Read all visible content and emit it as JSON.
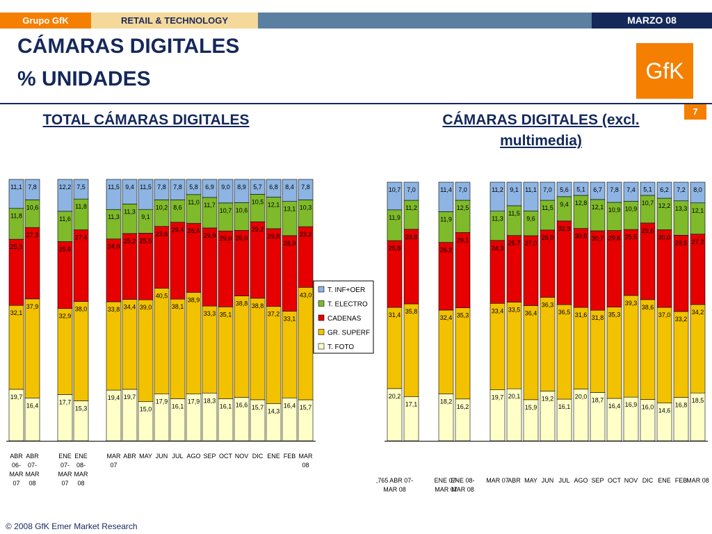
{
  "header": {
    "brand": "Grupo GfK",
    "section": "RETAIL & TECHNOLOGY",
    "date": "MARZO 08",
    "title_line1": "CÁMARAS DIGITALES",
    "title_line2": "% UNIDADES",
    "logo_text": "GfK",
    "page_number": "7"
  },
  "footer": {
    "copyright": "© 2008 GfK Emer Market Research"
  },
  "legend": {
    "items": [
      {
        "label": "T. INF+OER",
        "color": "#8db4e2"
      },
      {
        "label": "T. ELECTRO",
        "color": "#7fba2a"
      },
      {
        "label": "CADENAS",
        "color": "#e60000"
      },
      {
        "label": "GR. SUPERF",
        "color": "#f2c200"
      },
      {
        "label": "T. FOTO",
        "color": "#ffffc8"
      }
    ]
  },
  "chart_data": [
    {
      "type": "bar",
      "stacked": true,
      "title": "TOTAL CÁMARAS DIGITALES",
      "ylim": [
        0,
        100
      ],
      "grid": false,
      "legend": "right",
      "series_order_bottom_to_top": [
        "T. FOTO",
        "GR. SUPERF",
        "CADENAS",
        "T. ELECTRO",
        "T. INF+OER"
      ],
      "groups": [
        {
          "bars": [
            {
              "label": [
                "ABR",
                "06-",
                "MAR",
                "07"
              ],
              "values": [
                19.7,
                32.1,
                25.3,
                11.8,
                11.1
              ]
            },
            {
              "label": [
                "ABR",
                "07-",
                "MAR",
                "08"
              ],
              "values": [
                16.4,
                37.9,
                27.3,
                10.6,
                7.8
              ]
            }
          ]
        },
        {
          "bars": [
            {
              "label": [
                "ENE",
                "07-",
                "MAR",
                "07"
              ],
              "values": [
                17.7,
                32.9,
                25.6,
                11.6,
                12.2
              ]
            },
            {
              "label": [
                "ENE",
                "08-",
                "MAR",
                "08"
              ],
              "values": [
                15.3,
                38.0,
                27.4,
                11.8,
                7.5
              ]
            }
          ]
        },
        {
          "bars": [
            {
              "label": [
                "MAR",
                "07"
              ],
              "values": [
                19.4,
                33.8,
                24.0,
                11.3,
                11.5
              ]
            },
            {
              "label": [
                "ABR"
              ],
              "values": [
                19.7,
                34.4,
                25.2,
                11.3,
                9.4
              ]
            },
            {
              "label": [
                "MAY"
              ],
              "values": [
                15.0,
                39.0,
                25.5,
                9.1,
                11.5
              ]
            },
            {
              "label": [
                "JUN"
              ],
              "values": [
                17.9,
                40.5,
                23.6,
                10.2,
                7.8
              ]
            },
            {
              "label": [
                "JUL"
              ],
              "values": [
                16.1,
                38.1,
                29.4,
                8.6,
                7.8
              ]
            },
            {
              "label": [
                "AGO"
              ],
              "values": [
                17.9,
                38.9,
                26.4,
                11.0,
                5.8
              ]
            },
            {
              "label": [
                "SEP"
              ],
              "values": [
                18.3,
                33.3,
                29.9,
                11.7,
                6.9
              ]
            },
            {
              "label": [
                "OCT"
              ],
              "values": [
                16.1,
                35.1,
                29.0,
                10.7,
                9.0
              ]
            },
            {
              "label": [
                "NOV"
              ],
              "values": [
                16.6,
                38.8,
                25.0,
                10.6,
                8.9
              ]
            },
            {
              "label": [
                "DIC"
              ],
              "values": [
                15.7,
                38.8,
                29.2,
                10.5,
                5.7
              ]
            },
            {
              "label": [
                "ENE"
              ],
              "values": [
                14.3,
                37.2,
                29.8,
                12.1,
                6.8
              ]
            },
            {
              "label": [
                "FEB"
              ],
              "values": [
                16.4,
                33.1,
                28.9,
                13.1,
                8.4
              ]
            },
            {
              "label": [
                "MAR",
                "08"
              ],
              "values": [
                15.7,
                43.0,
                23.2,
                10.3,
                7.8
              ]
            }
          ]
        }
      ]
    },
    {
      "type": "bar",
      "stacked": true,
      "title": "CÁMARAS DIGITALES (excl. multimedia)",
      "ylim": [
        0,
        100
      ],
      "grid": false,
      "series_order_bottom_to_top": [
        "T. FOTO",
        "GR. SUPERF",
        "CADENAS",
        "T. ELECTRO",
        "T. INF+OER"
      ],
      "groups": [
        {
          "bars": [
            {
              "label": [
                ",765 ABR 07-",
                "MAR 08"
              ],
              "values": [
                20.2,
                31.4,
                25.8,
                11.9,
                10.7
              ]
            },
            {
              "label": [],
              "values": [
                17.1,
                35.8,
                28.8,
                11.2,
                7.0
              ]
            }
          ]
        },
        {
          "bars": [
            {
              "label": [
                "ENE 07-",
                "MAR 07"
              ],
              "values": [
                18.2,
                32.4,
                26.2,
                11.9,
                11.4
              ]
            },
            {
              "label": [
                "ENE 08-",
                "MAR 08"
              ],
              "values": [
                16.2,
                35.3,
                29.1,
                12.5,
                7.0
              ]
            }
          ]
        },
        {
          "bars": [
            {
              "label": [
                "MAR 07"
              ],
              "values": [
                19.7,
                33.4,
                24.3,
                11.3,
                11.2
              ]
            },
            {
              "label": [
                "ABR"
              ],
              "values": [
                20.1,
                33.5,
                25.7,
                11.5,
                9.1
              ]
            },
            {
              "label": [
                "MAY"
              ],
              "values": [
                15.9,
                36.4,
                27.0,
                9.6,
                11.1
              ]
            },
            {
              "label": [
                "JUN"
              ],
              "values": [
                19.2,
                36.3,
                26.0,
                11.5,
                7.0
              ]
            },
            {
              "label": [
                "JUL"
              ],
              "values": [
                16.1,
                36.5,
                32.3,
                9.4,
                5.6
              ]
            },
            {
              "label": [
                "AGO"
              ],
              "values": [
                20.0,
                31.6,
                30.5,
                12.8,
                5.1
              ]
            },
            {
              "label": [
                "SEP"
              ],
              "values": [
                18.7,
                31.8,
                30.7,
                12.1,
                6.7
              ]
            },
            {
              "label": [
                "OCT"
              ],
              "values": [
                16.4,
                35.3,
                29.6,
                10.9,
                7.8
              ]
            },
            {
              "label": [
                "NOV"
              ],
              "values": [
                16.9,
                39.3,
                25.5,
                10.9,
                7.4
              ]
            },
            {
              "label": [
                "DIC"
              ],
              "values": [
                16.0,
                38.6,
                29.6,
                10.7,
                5.1
              ]
            },
            {
              "label": [
                "ENE"
              ],
              "values": [
                14.6,
                37.0,
                30.0,
                12.2,
                6.2
              ]
            },
            {
              "label": [
                "FEB"
              ],
              "values": [
                16.8,
                33.2,
                29.5,
                13.3,
                7.2
              ]
            },
            {
              "label": [
                "MAR 08"
              ],
              "values": [
                18.5,
                34.2,
                27.2,
                12.1,
                8.0
              ]
            }
          ]
        }
      ]
    }
  ]
}
